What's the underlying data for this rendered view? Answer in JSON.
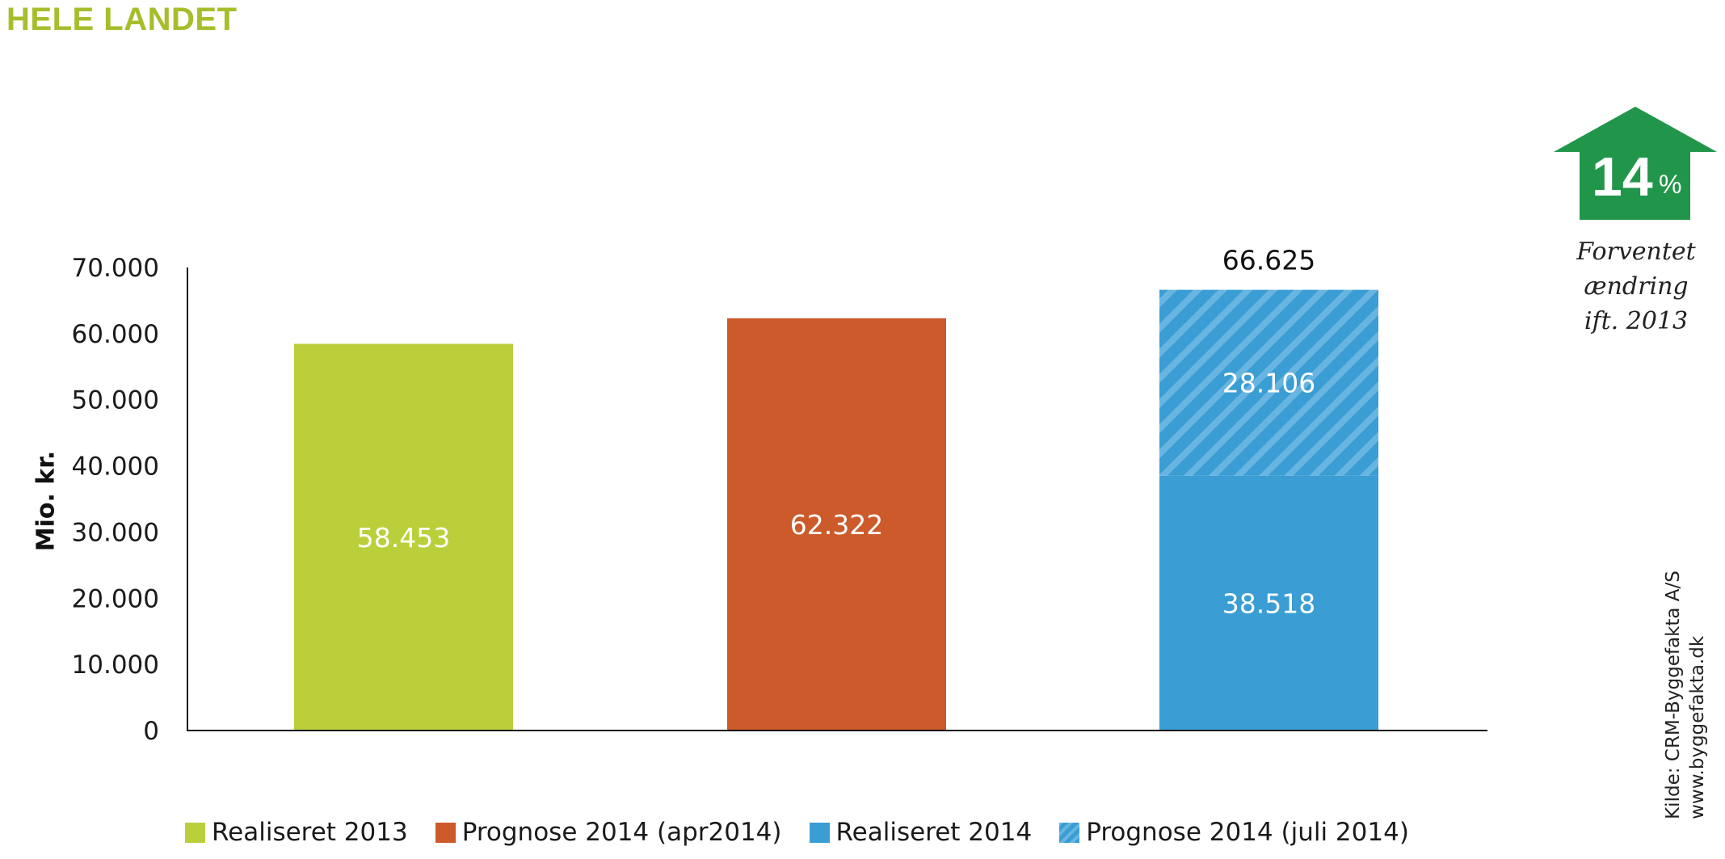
{
  "title": "HELE LANDET",
  "badge": {
    "value": "14",
    "unit": "%",
    "color": "#21964a",
    "note_lines": [
      "Forventet",
      "ændring",
      "ift. 2013"
    ]
  },
  "source_lines": [
    "Kilde: CRM-Byggefakta A/S",
    "www.byggefakta.dk"
  ],
  "chart_data": {
    "type": "bar",
    "title": "HELE LANDET",
    "xlabel": "",
    "ylabel": "Mio. kr.",
    "ylim": [
      0,
      70000
    ],
    "yticks": [
      0,
      10000,
      20000,
      30000,
      40000,
      50000,
      60000,
      70000
    ],
    "ytick_labels": [
      "0",
      "10.000",
      "20.000",
      "30.000",
      "40.000",
      "50.000",
      "60.000",
      "70.000"
    ],
    "grid": false,
    "legend_position": "bottom",
    "bars": [
      {
        "segments": [
          {
            "series": "Realiseret 2013",
            "value": 58453,
            "label": "58.453"
          }
        ]
      },
      {
        "segments": [
          {
            "series": "Prognose 2014 (apr2014)",
            "value": 62322,
            "label": "62.322"
          }
        ]
      },
      {
        "segments": [
          {
            "series": "Realiseret 2014",
            "value": 38518,
            "label": "38.518"
          },
          {
            "series": "Prognose 2014 (juli 2014)",
            "value": 28106,
            "label": "28.106"
          }
        ],
        "total_label": "66.625"
      }
    ],
    "series": [
      {
        "name": "Realiseret 2013",
        "color": "#bbcf3b",
        "pattern": "solid"
      },
      {
        "name": "Prognose 2014 (apr2014)",
        "color": "#cc5a2b",
        "pattern": "solid"
      },
      {
        "name": "Realiseret 2014",
        "color": "#3a9dd3",
        "pattern": "solid"
      },
      {
        "name": "Prognose 2014 (juli 2014)",
        "color": "#3a9dd3",
        "pattern": "hatched"
      }
    ]
  }
}
